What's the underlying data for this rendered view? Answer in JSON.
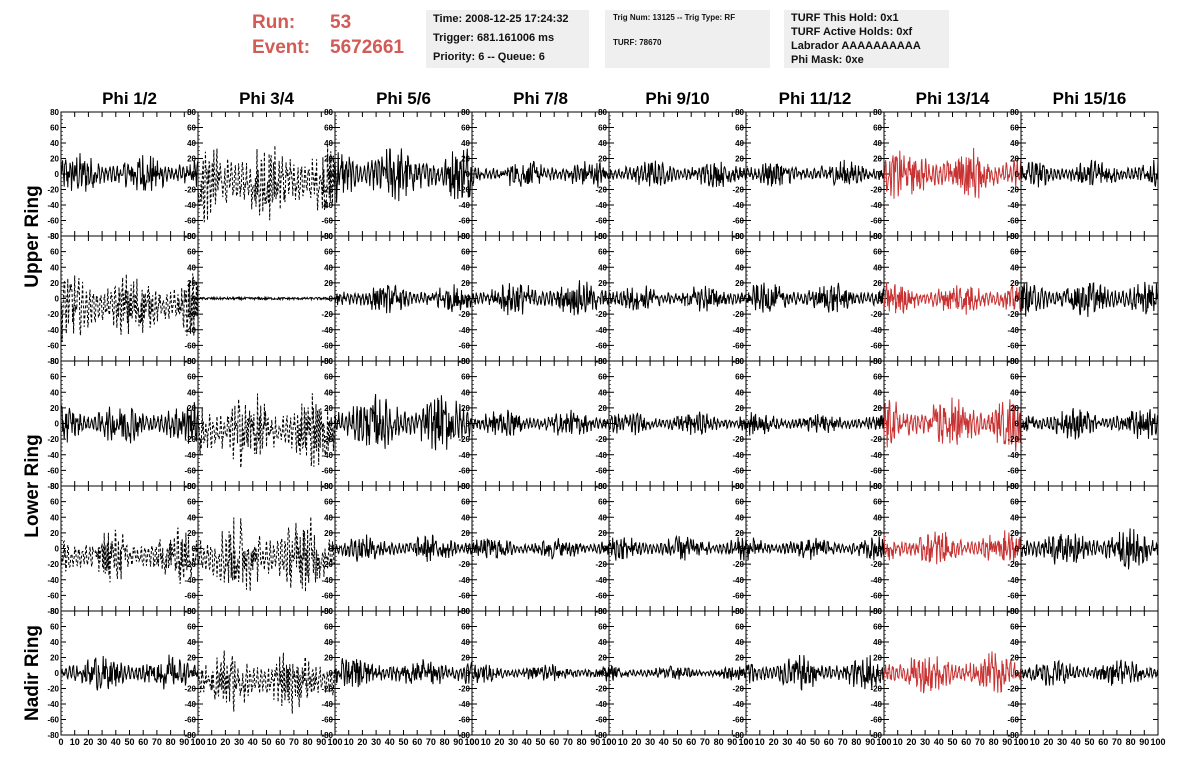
{
  "header": {
    "run_label": "Run:",
    "run_value": "53",
    "event_label": "Event:",
    "event_value": "5672661",
    "info_time": "Time: 2008-12-25 17:24:32",
    "info_trigger": "Trigger: 681.161006 ms",
    "info_priority": "Priority: 6 -- Queue: 6",
    "info_trig_num": "Trig Num: 13125 -- Trig Type: RF",
    "info_turf": "TURF: 78670",
    "info_turf_hold": "TURF This Hold: 0x1",
    "info_turf_active": "TURF Active Holds: 0xf",
    "info_labrador": "Labrador AAAAAAAAAA",
    "info_phi_mask": "Phi Mask: 0xe"
  },
  "columns": [
    "Phi 1/2",
    "Phi 3/4",
    "Phi 5/6",
    "Phi 7/8",
    "Phi 9/10",
    "Phi 11/12",
    "Phi 13/14",
    "Phi 15/16"
  ],
  "ring_labels": [
    "Upper Ring",
    "Lower Ring",
    "Nadir Ring"
  ],
  "y_ticks": [
    "80",
    "60",
    "40",
    "20",
    "0",
    "-20",
    "-40",
    "-60",
    "-80"
  ],
  "x_ticks": [
    "0",
    "10",
    "20",
    "30",
    "40",
    "50",
    "60",
    "70",
    "80",
    "90",
    "100"
  ],
  "colors": {
    "trace": "#000000",
    "highlight": "#c83232",
    "axis": "#000000",
    "run_text": "#d25b55",
    "info_bg": "#efefef"
  },
  "chart_data": {
    "type": "line",
    "xlim": [
      0,
      100
    ],
    "ylim": [
      -80,
      80
    ],
    "rows": 5,
    "cols": 8,
    "highlight_column": "Phi 13/14",
    "dashed_panels": [
      [
        0,
        1
      ],
      [
        1,
        0
      ],
      [
        2,
        1
      ],
      [
        3,
        0
      ],
      [
        3,
        1
      ],
      [
        4,
        1
      ]
    ],
    "flat_panels": [
      [
        1,
        1
      ]
    ],
    "panel_amplitude": [
      [
        22,
        45,
        30,
        15,
        14,
        14,
        28,
        15
      ],
      [
        35,
        3,
        15,
        18,
        14,
        16,
        18,
        20
      ],
      [
        22,
        40,
        30,
        14,
        12,
        12,
        28,
        16
      ],
      [
        28,
        40,
        14,
        12,
        14,
        12,
        18,
        20
      ],
      [
        18,
        32,
        18,
        10,
        8,
        18,
        22,
        14
      ]
    ]
  }
}
